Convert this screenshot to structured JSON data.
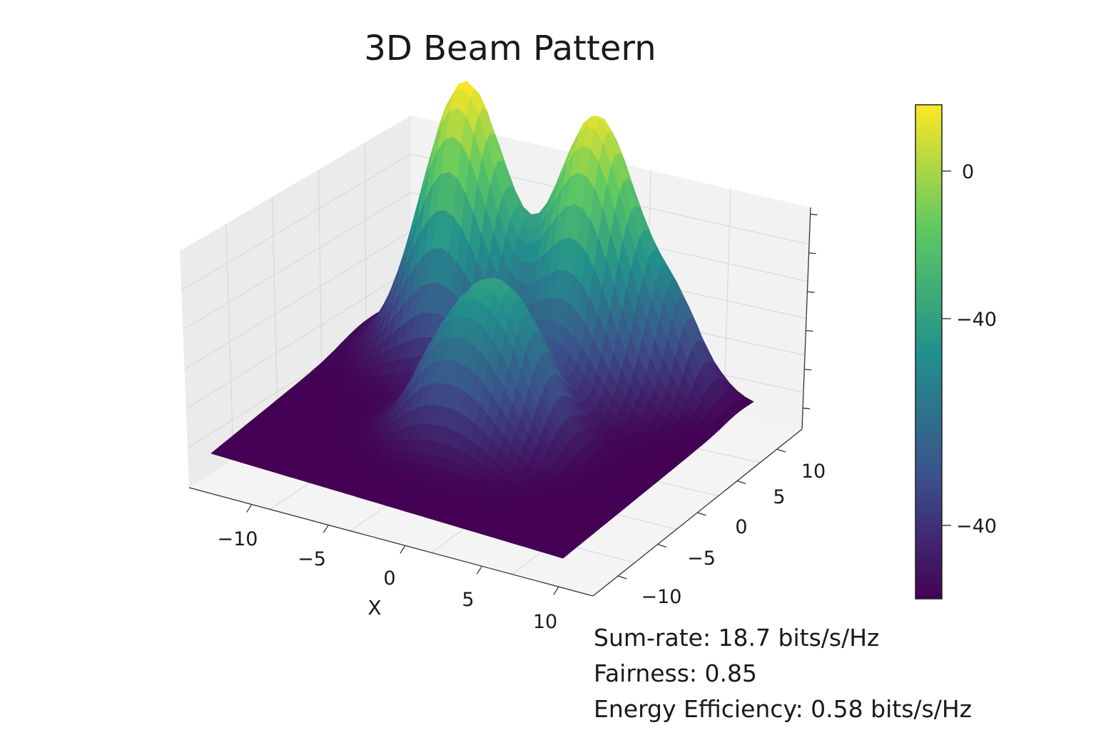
{
  "chart_data": {
    "type": "surface",
    "title": "3D Beam Pattern",
    "xlabel": "X",
    "ylabel": "",
    "zlabel": "",
    "x_ticks": [
      "−10",
      "−5",
      "0",
      "5",
      "10"
    ],
    "y_ticks": [
      "−10",
      "−5",
      "0",
      "5",
      "10"
    ],
    "xlim": [
      -12,
      12
    ],
    "ylim": [
      -12,
      12
    ],
    "colormap": "viridis",
    "colorbar_ticks": [
      "0",
      "−40",
      "−40"
    ],
    "grid": true,
    "peaks": [
      {
        "x": -5,
        "y": 7,
        "height": 1.0
      },
      {
        "x": 1,
        "y": -1,
        "height": 0.55
      },
      {
        "x": 3,
        "y": 8,
        "height": 0.58
      },
      {
        "x": 3,
        "y": 10,
        "height": 0.45
      },
      {
        "x": 8,
        "y": 10,
        "height": 0.25
      },
      {
        "x": -2,
        "y": -3,
        "height": 0.12
      },
      {
        "x": 4,
        "y": 0,
        "height": 0.12
      }
    ]
  },
  "metrics": [
    {
      "label": "Sum-rate",
      "value": "18.7 bits/s/Hz",
      "text": "Sum-rate: 18.7 bits/s/Hz"
    },
    {
      "label": "Fairness",
      "value": "0.85",
      "text": "Fairness: 0.85"
    },
    {
      "label": "Energy Efficiency",
      "value": "0.58 bits/s/Hz",
      "text": "Energy Efficiency: 0.58 bits/s/Hz"
    }
  ],
  "colors": {
    "pane": "#f2f2f2",
    "pane_side": "#ebebeb",
    "grid": "#d9d9d9",
    "viridis": [
      "#440154",
      "#3b528b",
      "#21918c",
      "#5ec962",
      "#fde725"
    ]
  }
}
